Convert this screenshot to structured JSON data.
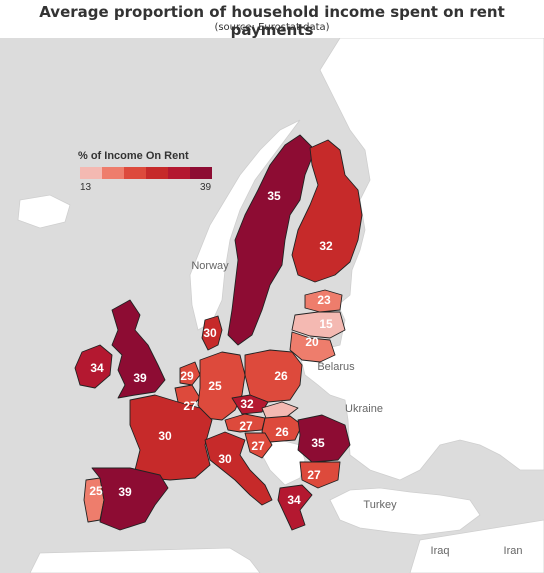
{
  "header": {
    "title": "Average proportion of household income spent on rent payments",
    "subtitle": "(source: Eurostat data)"
  },
  "legend": {
    "title": "% of Income On Rent",
    "min": "13",
    "max": "39",
    "colors": [
      "#f4b9b2",
      "#ee7d6c",
      "#dd4a3c",
      "#c62a2a",
      "#b41830",
      "#8d0c33"
    ]
  },
  "place_labels": {
    "norway": "Norway",
    "belarus": "Belarus",
    "ukraine": "Ukraine",
    "turkey": "Turkey",
    "iraq": "Iraq",
    "iran": "Iran"
  },
  "countries": [
    {
      "name": "Sweden",
      "value": "35"
    },
    {
      "name": "Finland",
      "value": "32"
    },
    {
      "name": "Estonia",
      "value": "23"
    },
    {
      "name": "Latvia",
      "value": "15"
    },
    {
      "name": "Lithuania",
      "value": "20"
    },
    {
      "name": "Denmark",
      "value": "30"
    },
    {
      "name": "Ireland",
      "value": "34"
    },
    {
      "name": "United Kingdom",
      "value": "39"
    },
    {
      "name": "Netherlands",
      "value": "29"
    },
    {
      "name": "Germany",
      "value": "25"
    },
    {
      "name": "Poland",
      "value": "26"
    },
    {
      "name": "Belgium",
      "value": "27"
    },
    {
      "name": "France",
      "value": "30"
    },
    {
      "name": "Czech Republic",
      "value": "32"
    },
    {
      "name": "Austria",
      "value": "27"
    },
    {
      "name": "Hungary",
      "value": "26"
    },
    {
      "name": "Slovenia",
      "value": "27"
    },
    {
      "name": "Italy",
      "value": "30"
    },
    {
      "name": "Romania",
      "value": "35"
    },
    {
      "name": "Bulgaria",
      "value": "27"
    },
    {
      "name": "Greece",
      "value": "34"
    },
    {
      "name": "Portugal",
      "value": "25"
    },
    {
      "name": "Spain",
      "value": "39"
    }
  ]
}
